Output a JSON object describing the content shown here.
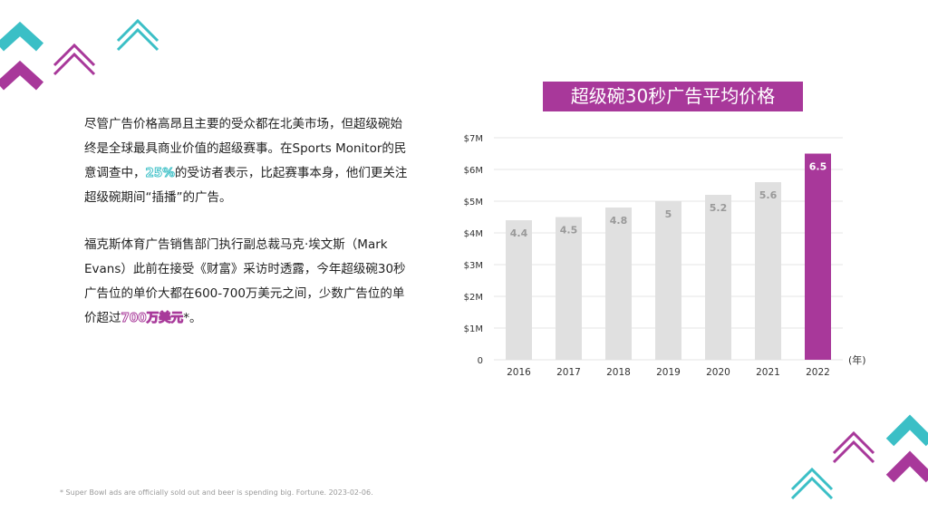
{
  "paragraph1": {
    "before": "尽管广告价格高昂且主要的受众都在北美市场，但超级碗始终是全球最具商业价值的超级赛事。在Sports Monitor的民意调查中，",
    "highlight": "25%",
    "after": "的受访者表示，比起赛事本身，他们更关注超级碗期间“插播”的广告。"
  },
  "paragraph2": {
    "before": "福克斯体育广告销售部门执行副总裁马克·埃文斯（Mark Evans）此前在接受《财富》采访时透露，今年超级碗30秒广告位的单价大都在600-700万美元之间，少数广告位的单价超过",
    "highlight": "700万美元",
    "after": "*。"
  },
  "footnote": "* Super Bowl ads are officially sold out and beer is spending big. Fortune. 2023-02-06.",
  "colors": {
    "teal": "#3bbfc6",
    "magenta": "#a8389a",
    "bar_gray": "#e0e0e0"
  },
  "chart_data": {
    "type": "bar",
    "title": "超级碗30秒广告平均价格",
    "categories": [
      "2016",
      "2017",
      "2018",
      "2019",
      "2020",
      "2021",
      "2022"
    ],
    "values": [
      4.4,
      4.5,
      4.8,
      5,
      5.2,
      5.6,
      6.5
    ],
    "value_labels": [
      "4.4",
      "4.5",
      "4.8",
      "5",
      "5.2",
      "5.6",
      "6.5"
    ],
    "highlight_index": 6,
    "y_ticks": [
      {
        "value": 0,
        "label": "0"
      },
      {
        "value": 1,
        "label": "$1M"
      },
      {
        "value": 2,
        "label": "$2M"
      },
      {
        "value": 3,
        "label": "$3M"
      },
      {
        "value": 4,
        "label": "$4M"
      },
      {
        "value": 5,
        "label": "$5M"
      },
      {
        "value": 6,
        "label": "$6M"
      },
      {
        "value": 7,
        "label": "$7M"
      }
    ],
    "ylim": [
      0,
      7
    ],
    "xlabel": "(年)",
    "ylabel": "",
    "grid": true
  }
}
